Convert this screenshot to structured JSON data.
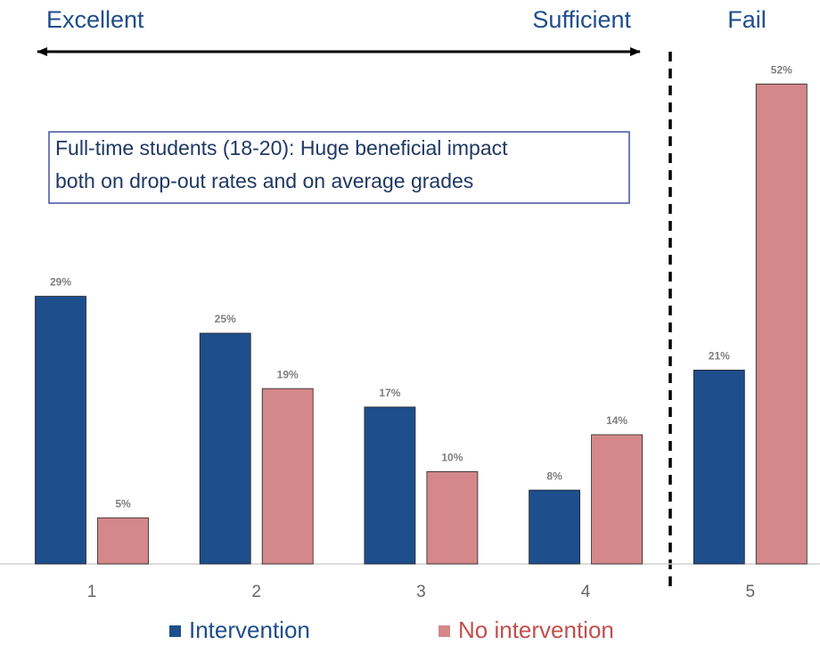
{
  "chart_data": {
    "type": "bar",
    "annotations": {
      "left": "Excellent",
      "middle": "Sufficient",
      "right": "Fail",
      "box": [
        "Full-time students (18-20): Huge beneficial impact",
        "both on drop-out rates and on average grades"
      ]
    },
    "categories": [
      "1",
      "2",
      "3",
      "4",
      "5"
    ],
    "series": [
      {
        "name": "Intervention",
        "color": "#1f4e8c",
        "values": [
          29,
          25,
          17,
          8,
          21
        ],
        "value_labels": [
          "29%",
          "25%",
          "17%",
          "8%",
          "21%"
        ]
      },
      {
        "name": "No intervention",
        "color": "#d4888a",
        "legend_color": "#c0504d",
        "values": [
          5,
          19,
          10,
          14,
          52
        ],
        "value_labels": [
          "5%",
          "19%",
          "10%",
          "14%",
          "52%"
        ]
      }
    ]
  }
}
